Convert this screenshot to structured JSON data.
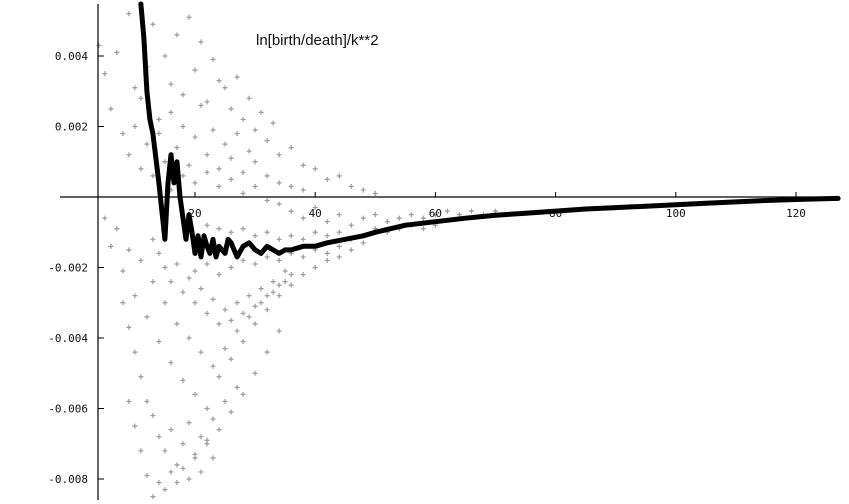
{
  "chart_data": {
    "type": "scatter",
    "title": "",
    "xlabel": "",
    "ylabel": "",
    "annotation": "ln[birth/death]/k**2",
    "xlim": [
      2,
      128
    ],
    "ylim": [
      -0.0087,
      0.0055
    ],
    "x_ticks": [
      {
        "value": 20,
        "label": "20"
      },
      {
        "value": 40,
        "label": "40"
      },
      {
        "value": 60,
        "label": "60"
      },
      {
        "value": 80,
        "label": "80"
      },
      {
        "value": 100,
        "label": "100"
      },
      {
        "value": 120,
        "label": "120"
      }
    ],
    "y_ticks": [
      {
        "value": 0.004,
        "label": "0.004"
      },
      {
        "value": 0.002,
        "label": "0.002"
      },
      {
        "value": -0.002,
        "label": "-0.002"
      },
      {
        "value": -0.004,
        "label": "-0.004"
      },
      {
        "value": -0.006,
        "label": "-0.006"
      },
      {
        "value": -0.008,
        "label": "-0.008"
      }
    ],
    "grid": false,
    "colors": {
      "points": "#9a9a9a",
      "line": "#000000",
      "axes": "#000000"
    },
    "series": [
      {
        "kind": "line",
        "points": [
          [
            11.0,
            0.0055
          ],
          [
            11.5,
            0.0045
          ],
          [
            12.0,
            0.003
          ],
          [
            12.5,
            0.0022
          ],
          [
            13.0,
            0.0018
          ],
          [
            13.5,
            0.0011
          ],
          [
            14.0,
            0.0004
          ],
          [
            14.5,
            -0.0004
          ],
          [
            15.0,
            -0.0012
          ],
          [
            15.5,
            0.0004
          ],
          [
            16.0,
            0.0012
          ],
          [
            16.5,
            0.0004
          ],
          [
            17.0,
            0.001
          ],
          [
            17.5,
            0.0
          ],
          [
            18.0,
            -0.0006
          ],
          [
            18.5,
            -0.0012
          ],
          [
            19.0,
            -0.0005
          ],
          [
            19.5,
            -0.001
          ],
          [
            20.0,
            -0.0016
          ],
          [
            20.5,
            -0.0011
          ],
          [
            21.0,
            -0.0017
          ],
          [
            21.5,
            -0.0011
          ],
          [
            22.0,
            -0.0014
          ],
          [
            22.5,
            -0.0016
          ],
          [
            23.0,
            -0.0012
          ],
          [
            23.5,
            -0.0017
          ],
          [
            24.0,
            -0.0014
          ],
          [
            24.5,
            -0.0015
          ],
          [
            25.0,
            -0.0016
          ],
          [
            25.5,
            -0.0012
          ],
          [
            26.0,
            -0.0013
          ],
          [
            26.5,
            -0.0015
          ],
          [
            27.0,
            -0.0017
          ],
          [
            28.0,
            -0.0014
          ],
          [
            29.0,
            -0.0013
          ],
          [
            30.0,
            -0.0015
          ],
          [
            31.0,
            -0.0016
          ],
          [
            32.0,
            -0.0014
          ],
          [
            33.0,
            -0.0015
          ],
          [
            34.0,
            -0.0016
          ],
          [
            35.0,
            -0.0015
          ],
          [
            36.0,
            -0.0015
          ],
          [
            38.0,
            -0.0014
          ],
          [
            40.0,
            -0.0014
          ],
          [
            42.0,
            -0.0013
          ],
          [
            45.0,
            -0.0012
          ],
          [
            48.0,
            -0.0011
          ],
          [
            50.0,
            -0.001
          ],
          [
            55.0,
            -0.0008
          ],
          [
            60.0,
            -0.0007
          ],
          [
            65.0,
            -0.0006
          ],
          [
            70.0,
            -0.00052
          ],
          [
            75.0,
            -0.00046
          ],
          [
            80.0,
            -0.0004
          ],
          [
            85.0,
            -0.00034
          ],
          [
            90.0,
            -0.0003
          ],
          [
            95.0,
            -0.00026
          ],
          [
            100.0,
            -0.00022
          ],
          [
            105.0,
            -0.00018
          ],
          [
            110.0,
            -0.00014
          ],
          [
            115.0,
            -0.0001
          ],
          [
            120.0,
            -7e-05
          ],
          [
            127.0,
            -4e-05
          ]
        ]
      },
      {
        "kind": "scatter",
        "marker": "+",
        "points": [
          [
            4.0,
            0.0043
          ],
          [
            5.0,
            0.0035
          ],
          [
            6.0,
            0.0025
          ],
          [
            7.0,
            0.0041
          ],
          [
            8.0,
            0.0018
          ],
          [
            9.0,
            0.0052
          ],
          [
            10.0,
            0.0031
          ],
          [
            11.0,
            0.0028
          ],
          [
            12.0,
            0.0037
          ],
          [
            13.0,
            0.0049
          ],
          [
            14.0,
            0.0022
          ],
          [
            15.0,
            0.004
          ],
          [
            16.0,
            0.0032
          ],
          [
            17.0,
            0.0046
          ],
          [
            18.0,
            0.0029
          ],
          [
            19.0,
            0.0051
          ],
          [
            20.0,
            0.0036
          ],
          [
            21.0,
            0.0044
          ],
          [
            22.0,
            0.0027
          ],
          [
            23.0,
            0.0039
          ],
          [
            24.0,
            0.0033
          ],
          [
            25.0,
            0.0031
          ],
          [
            26.0,
            0.0025
          ],
          [
            27.0,
            0.0034
          ],
          [
            28.0,
            0.0022
          ],
          [
            29.0,
            0.0028
          ],
          [
            30.0,
            0.0019
          ],
          [
            31.0,
            0.0024
          ],
          [
            32.0,
            0.0016
          ],
          [
            33.0,
            0.0021
          ],
          [
            34.0,
            0.0012
          ],
          [
            36.0,
            0.0014
          ],
          [
            38.0,
            0.0009
          ],
          [
            40.0,
            0.0008
          ],
          [
            42.0,
            0.0005
          ],
          [
            44.0,
            0.0006
          ],
          [
            46.0,
            0.0003
          ],
          [
            48.0,
            0.0002
          ],
          [
            50.0,
            0.0001
          ],
          [
            9.0,
            0.0012
          ],
          [
            10.0,
            0.002
          ],
          [
            11.0,
            0.0008
          ],
          [
            12.0,
            0.0015
          ],
          [
            13.0,
            0.0006
          ],
          [
            14.0,
            0.0018
          ],
          [
            15.0,
            0.001
          ],
          [
            16.0,
            0.0024
          ],
          [
            17.0,
            0.0014
          ],
          [
            18.0,
            0.002
          ],
          [
            19.0,
            0.0009
          ],
          [
            20.0,
            0.0017
          ],
          [
            21.0,
            0.0026
          ],
          [
            22.0,
            0.0012
          ],
          [
            23.0,
            0.0019
          ],
          [
            24.0,
            0.0008
          ],
          [
            25.0,
            0.0015
          ],
          [
            26.0,
            0.0011
          ],
          [
            27.0,
            0.0018
          ],
          [
            28.0,
            0.0007
          ],
          [
            29.0,
            0.0013
          ],
          [
            30.0,
            0.001
          ],
          [
            32.0,
            0.0006
          ],
          [
            34.0,
            0.0004
          ],
          [
            36.0,
            0.0003
          ],
          [
            38.0,
            0.0002
          ],
          [
            16.0,
            0.0002
          ],
          [
            18.0,
            0.0006
          ],
          [
            20.0,
            0.0004
          ],
          [
            22.0,
            0.0007
          ],
          [
            24.0,
            0.0003
          ],
          [
            26.0,
            0.0005
          ],
          [
            28.0,
            0.0001
          ],
          [
            30.0,
            0.0003
          ],
          [
            32.0,
            -0.0001
          ],
          [
            34.0,
            -0.0002
          ],
          [
            36.0,
            -0.0004
          ],
          [
            38.0,
            -0.0006
          ],
          [
            40.0,
            -0.0003
          ],
          [
            42.0,
            -0.0007
          ],
          [
            44.0,
            -0.0005
          ],
          [
            46.0,
            -0.0008
          ],
          [
            48.0,
            -0.0006
          ],
          [
            50.0,
            -0.0005
          ],
          [
            52.0,
            -0.0007
          ],
          [
            54.0,
            -0.0006
          ],
          [
            56.0,
            -0.0005
          ],
          [
            58.0,
            -0.0006
          ],
          [
            60.0,
            -0.0005
          ],
          [
            62.0,
            -0.0004
          ],
          [
            64.0,
            -0.0005
          ],
          [
            66.0,
            -0.0004
          ],
          [
            68.0,
            -0.0005
          ],
          [
            70.0,
            -0.0004
          ],
          [
            22.0,
            -0.0008
          ],
          [
            24.0,
            -0.0009
          ],
          [
            26.0,
            -0.001
          ],
          [
            28.0,
            -0.0009
          ],
          [
            30.0,
            -0.0011
          ],
          [
            32.0,
            -0.001
          ],
          [
            34.0,
            -0.0012
          ],
          [
            36.0,
            -0.0011
          ],
          [
            38.0,
            -0.0012
          ],
          [
            40.0,
            -0.001
          ],
          [
            42.0,
            -0.0011
          ],
          [
            44.0,
            -0.001
          ],
          [
            46.0,
            -0.0012
          ],
          [
            48.0,
            -0.0011
          ],
          [
            50.0,
            -0.0009
          ],
          [
            52.0,
            -0.001
          ],
          [
            54.0,
            -0.0009
          ],
          [
            56.0,
            -0.0008
          ],
          [
            58.0,
            -0.0009
          ],
          [
            60.0,
            -0.0008
          ],
          [
            20.0,
            -0.0021
          ],
          [
            22.0,
            -0.0019
          ],
          [
            24.0,
            -0.0022
          ],
          [
            26.0,
            -0.002
          ],
          [
            28.0,
            -0.0018
          ],
          [
            30.0,
            -0.0019
          ],
          [
            32.0,
            -0.0017
          ],
          [
            34.0,
            -0.0018
          ],
          [
            36.0,
            -0.0016
          ],
          [
            38.0,
            -0.0017
          ],
          [
            40.0,
            -0.0015
          ],
          [
            42.0,
            -0.0016
          ],
          [
            44.0,
            -0.0014
          ],
          [
            46.0,
            -0.0015
          ],
          [
            48.0,
            -0.0013
          ],
          [
            5.0,
            -0.0006
          ],
          [
            6.0,
            -0.0014
          ],
          [
            7.0,
            -0.0009
          ],
          [
            8.0,
            -0.0021
          ],
          [
            9.0,
            -0.0015
          ],
          [
            10.0,
            -0.0028
          ],
          [
            11.0,
            -0.0018
          ],
          [
            12.0,
            -0.0034
          ],
          [
            13.0,
            -0.0024
          ],
          [
            14.0,
            -0.0041
          ],
          [
            15.0,
            -0.003
          ],
          [
            16.0,
            -0.0047
          ],
          [
            17.0,
            -0.0036
          ],
          [
            18.0,
            -0.0052
          ],
          [
            19.0,
            -0.004
          ],
          [
            20.0,
            -0.0056
          ],
          [
            21.0,
            -0.0044
          ],
          [
            22.0,
            -0.006
          ],
          [
            23.0,
            -0.0048
          ],
          [
            24.0,
            -0.0051
          ],
          [
            25.0,
            -0.0043
          ],
          [
            26.0,
            -0.0046
          ],
          [
            27.0,
            -0.0038
          ],
          [
            28.0,
            -0.0041
          ],
          [
            29.0,
            -0.0034
          ],
          [
            30.0,
            -0.0036
          ],
          [
            31.0,
            -0.003
          ],
          [
            32.0,
            -0.0032
          ],
          [
            33.0,
            -0.0027
          ],
          [
            34.0,
            -0.0028
          ],
          [
            35.0,
            -0.0024
          ],
          [
            36.0,
            -0.0025
          ],
          [
            38.0,
            -0.0022
          ],
          [
            40.0,
            -0.002
          ],
          [
            42.0,
            -0.0018
          ],
          [
            44.0,
            -0.0017
          ],
          [
            8.0,
            -0.003
          ],
          [
            9.0,
            -0.0037
          ],
          [
            10.0,
            -0.0044
          ],
          [
            11.0,
            -0.0051
          ],
          [
            12.0,
            -0.0058
          ],
          [
            13.0,
            -0.0062
          ],
          [
            14.0,
            -0.0068
          ],
          [
            15.0,
            -0.0072
          ],
          [
            16.0,
            -0.0066
          ],
          [
            17.0,
            -0.0076
          ],
          [
            18.0,
            -0.007
          ],
          [
            19.0,
            -0.0064
          ],
          [
            20.0,
            -0.0074
          ],
          [
            21.0,
            -0.0068
          ],
          [
            22.0,
            -0.007
          ],
          [
            23.0,
            -0.0063
          ],
          [
            24.0,
            -0.0066
          ],
          [
            25.0,
            -0.0058
          ],
          [
            26.0,
            -0.0061
          ],
          [
            27.0,
            -0.0054
          ],
          [
            28.0,
            -0.0056
          ],
          [
            30.0,
            -0.005
          ],
          [
            32.0,
            -0.0044
          ],
          [
            34.0,
            -0.0038
          ],
          [
            9.0,
            -0.0058
          ],
          [
            10.0,
            -0.0065
          ],
          [
            11.0,
            -0.0072
          ],
          [
            12.0,
            -0.0079
          ],
          [
            13.0,
            -0.0085
          ],
          [
            14.0,
            -0.0081
          ],
          [
            15.0,
            -0.0083
          ],
          [
            16.0,
            -0.0078
          ],
          [
            17.0,
            -0.0081
          ],
          [
            18.0,
            -0.0077
          ],
          [
            19.0,
            -0.008
          ],
          [
            20.0,
            -0.0073
          ],
          [
            21.0,
            -0.0078
          ],
          [
            22.0,
            -0.0069
          ],
          [
            23.0,
            -0.0074
          ],
          [
            13.0,
            -0.0012
          ],
          [
            14.0,
            -0.0016
          ],
          [
            15.0,
            -0.002
          ],
          [
            16.0,
            -0.0024
          ],
          [
            17.0,
            -0.0019
          ],
          [
            18.0,
            -0.0027
          ],
          [
            19.0,
            -0.0023
          ],
          [
            20.0,
            -0.003
          ],
          [
            21.0,
            -0.0026
          ],
          [
            22.0,
            -0.0033
          ],
          [
            23.0,
            -0.0029
          ],
          [
            24.0,
            -0.0036
          ],
          [
            25.0,
            -0.0032
          ],
          [
            26.0,
            -0.0035
          ],
          [
            27.0,
            -0.003
          ],
          [
            28.0,
            -0.0033
          ],
          [
            29.0,
            -0.0028
          ],
          [
            30.0,
            -0.0031
          ],
          [
            31.0,
            -0.0026
          ],
          [
            32.0,
            -0.0028
          ],
          [
            33.0,
            -0.0024
          ],
          [
            34.0,
            -0.0025
          ],
          [
            35.0,
            -0.0021
          ],
          [
            36.0,
            -0.0022
          ]
        ]
      }
    ]
  }
}
